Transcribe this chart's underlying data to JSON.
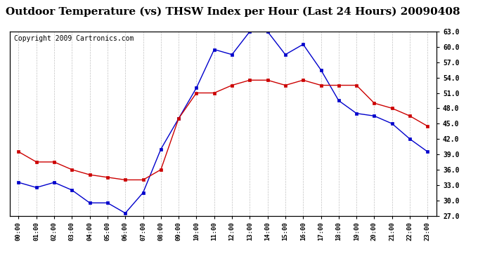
{
  "title": "Outdoor Temperature (vs) THSW Index per Hour (Last 24 Hours) 20090408",
  "copyright": "Copyright 2009 Cartronics.com",
  "hours": [
    0,
    1,
    2,
    3,
    4,
    5,
    6,
    7,
    8,
    9,
    10,
    11,
    12,
    13,
    14,
    15,
    16,
    17,
    18,
    19,
    20,
    21,
    22,
    23
  ],
  "hour_labels": [
    "00:00",
    "01:00",
    "02:00",
    "03:00",
    "04:00",
    "05:00",
    "06:00",
    "07:00",
    "08:00",
    "09:00",
    "10:00",
    "11:00",
    "12:00",
    "13:00",
    "14:00",
    "15:00",
    "16:00",
    "17:00",
    "18:00",
    "19:00",
    "20:00",
    "21:00",
    "22:00",
    "23:00"
  ],
  "temp_blue": [
    33.5,
    32.5,
    33.5,
    32.0,
    29.5,
    29.5,
    27.5,
    31.5,
    40.0,
    46.0,
    52.0,
    59.5,
    58.5,
    63.0,
    63.0,
    58.5,
    60.5,
    55.5,
    49.5,
    47.0,
    46.5,
    45.0,
    42.0,
    39.5
  ],
  "temp_red": [
    39.5,
    37.5,
    37.5,
    36.0,
    35.0,
    34.5,
    34.0,
    34.0,
    36.0,
    46.0,
    51.0,
    51.0,
    52.5,
    53.5,
    53.5,
    52.5,
    53.5,
    52.5,
    52.5,
    52.5,
    49.0,
    48.0,
    46.5,
    44.5
  ],
  "ylim_min": 27.0,
  "ylim_max": 63.0,
  "yticks": [
    27.0,
    30.0,
    33.0,
    36.0,
    39.0,
    42.0,
    45.0,
    48.0,
    51.0,
    54.0,
    57.0,
    60.0,
    63.0
  ],
  "blue_color": "#0000CC",
  "red_color": "#CC0000",
  "bg_color": "#FFFFFF",
  "grid_color": "#BBBBBB",
  "title_fontsize": 11,
  "copyright_fontsize": 7
}
